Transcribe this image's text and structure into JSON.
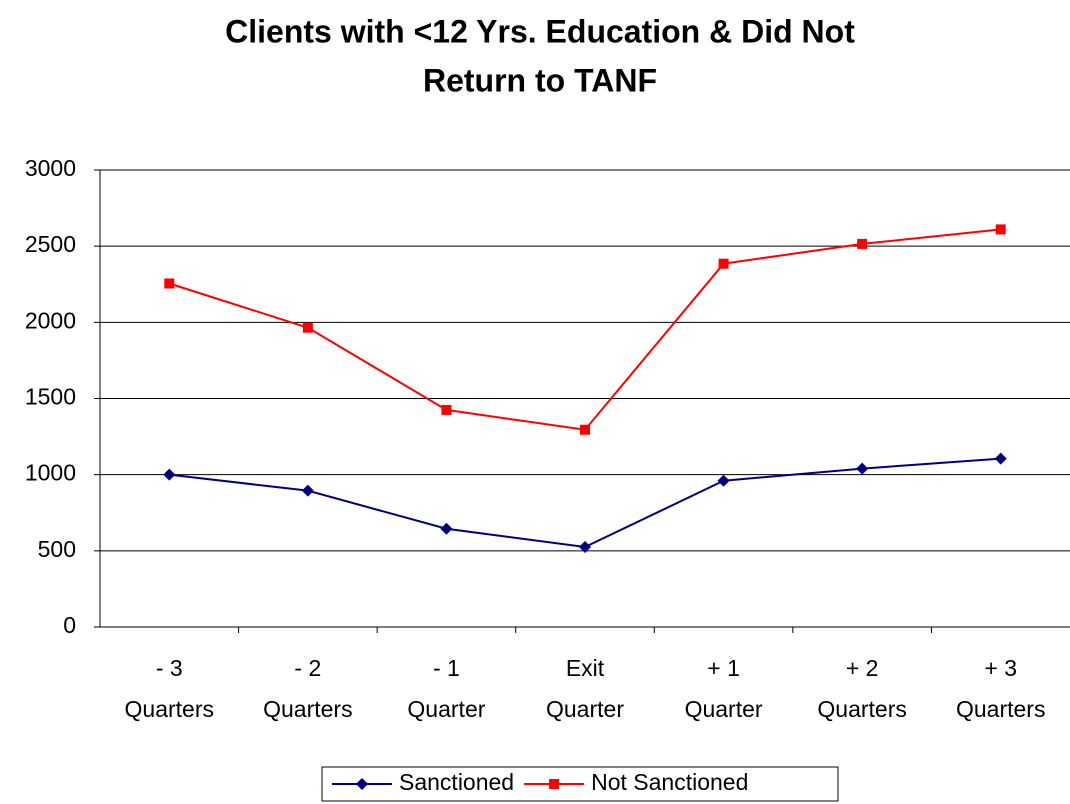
{
  "chart_data": {
    "type": "line",
    "title": [
      "Clients with <12 Yrs. Education & Did Not",
      "Return to TANF"
    ],
    "categories": [
      [
        "- 3",
        "Quarters"
      ],
      [
        "- 2",
        "Quarters"
      ],
      [
        "- 1",
        "Quarter"
      ],
      [
        "Exit",
        "Quarter"
      ],
      [
        "+ 1",
        "Quarter"
      ],
      [
        "+ 2",
        "Quarters"
      ],
      [
        "+ 3",
        "Quarters"
      ]
    ],
    "series": [
      {
        "name": "Sanctioned",
        "color": "#000080",
        "marker": "diamond",
        "values": [
          1000,
          895,
          645,
          525,
          960,
          1040,
          1105
        ]
      },
      {
        "name": "Not Sanctioned",
        "color": "#ff0000",
        "marker": "square",
        "values": [
          2255,
          1965,
          1425,
          1295,
          2385,
          2515,
          2610
        ]
      }
    ],
    "ylim": [
      0,
      3000
    ],
    "yticks": [
      0,
      500,
      1000,
      1500,
      2000,
      2500,
      3000
    ],
    "grid": true,
    "legend": "bottom"
  }
}
